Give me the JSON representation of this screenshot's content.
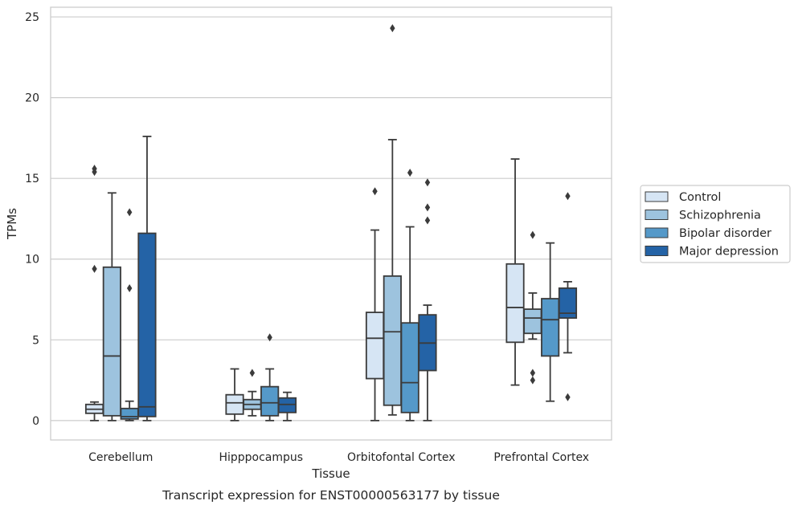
{
  "caption": "Transcript expression for ENST00000563177 by tissue",
  "chart_data": {
    "type": "boxplot",
    "xlabel": "Tissue",
    "ylabel": "TPMs",
    "ylim": [
      -1.2,
      25.6
    ],
    "yticks": [
      0,
      5,
      10,
      15,
      20,
      25
    ],
    "grid": "horizontal",
    "legend_position": "right",
    "categories": [
      "Cerebellum",
      "Hipppocampus",
      "Orbitofontal Cortex",
      "Prefrontal Cortex"
    ],
    "series": [
      {
        "name": "Control",
        "color": "#d6e5f4",
        "boxes": [
          {
            "whislo": 0.0,
            "q1": 0.45,
            "med": 0.7,
            "q3": 1.0,
            "whishi": 1.15,
            "fliers": [
              15.4,
              15.6,
              9.4
            ]
          },
          {
            "whislo": 0.0,
            "q1": 0.4,
            "med": 1.1,
            "q3": 1.6,
            "whishi": 3.2,
            "fliers": []
          },
          {
            "whislo": 0.0,
            "q1": 2.6,
            "med": 5.1,
            "q3": 6.7,
            "whishi": 11.8,
            "fliers": [
              14.2
            ]
          },
          {
            "whislo": 2.2,
            "q1": 4.85,
            "med": 7.0,
            "q3": 9.7,
            "whishi": 16.2,
            "fliers": []
          }
        ]
      },
      {
        "name": "Schizophrenia",
        "color": "#9dc3de",
        "boxes": [
          {
            "whislo": 0.0,
            "q1": 0.3,
            "med": 4.0,
            "q3": 9.5,
            "whishi": 14.1,
            "fliers": []
          },
          {
            "whislo": 0.3,
            "q1": 0.7,
            "med": 1.0,
            "q3": 1.3,
            "whishi": 1.8,
            "fliers": [
              2.95
            ]
          },
          {
            "whislo": 0.35,
            "q1": 0.95,
            "med": 5.5,
            "q3": 8.95,
            "whishi": 17.4,
            "fliers": [
              24.3
            ]
          },
          {
            "whislo": 5.05,
            "q1": 5.4,
            "med": 6.35,
            "q3": 6.9,
            "whishi": 7.9,
            "fliers": [
              2.5,
              2.95,
              11.5
            ]
          }
        ]
      },
      {
        "name": "Bipolar disorder",
        "color": "#5599c9",
        "boxes": [
          {
            "whislo": 0.0,
            "q1": 0.1,
            "med": 0.25,
            "q3": 0.75,
            "whishi": 1.2,
            "fliers": [
              8.2,
              12.9
            ]
          },
          {
            "whislo": 0.0,
            "q1": 0.3,
            "med": 1.1,
            "q3": 2.1,
            "whishi": 3.2,
            "fliers": [
              5.15
            ]
          },
          {
            "whislo": 0.0,
            "q1": 0.5,
            "med": 2.35,
            "q3": 6.05,
            "whishi": 12.0,
            "fliers": [
              15.35
            ]
          },
          {
            "whislo": 1.2,
            "q1": 4.0,
            "med": 6.25,
            "q3": 7.55,
            "whishi": 11.0,
            "fliers": []
          }
        ]
      },
      {
        "name": "Major depression",
        "color": "#2463a6",
        "boxes": [
          {
            "whislo": 0.0,
            "q1": 0.25,
            "med": 0.85,
            "q3": 11.6,
            "whishi": 17.6,
            "fliers": []
          },
          {
            "whislo": 0.0,
            "q1": 0.5,
            "med": 1.0,
            "q3": 1.4,
            "whishi": 1.75,
            "fliers": []
          },
          {
            "whislo": 0.0,
            "q1": 3.1,
            "med": 4.8,
            "q3": 6.55,
            "whishi": 7.15,
            "fliers": [
              12.4,
              13.2,
              14.75
            ]
          },
          {
            "whislo": 4.2,
            "q1": 6.35,
            "med": 6.65,
            "q3": 8.2,
            "whishi": 8.6,
            "fliers": [
              1.45,
              13.9
            ]
          }
        ]
      }
    ]
  }
}
